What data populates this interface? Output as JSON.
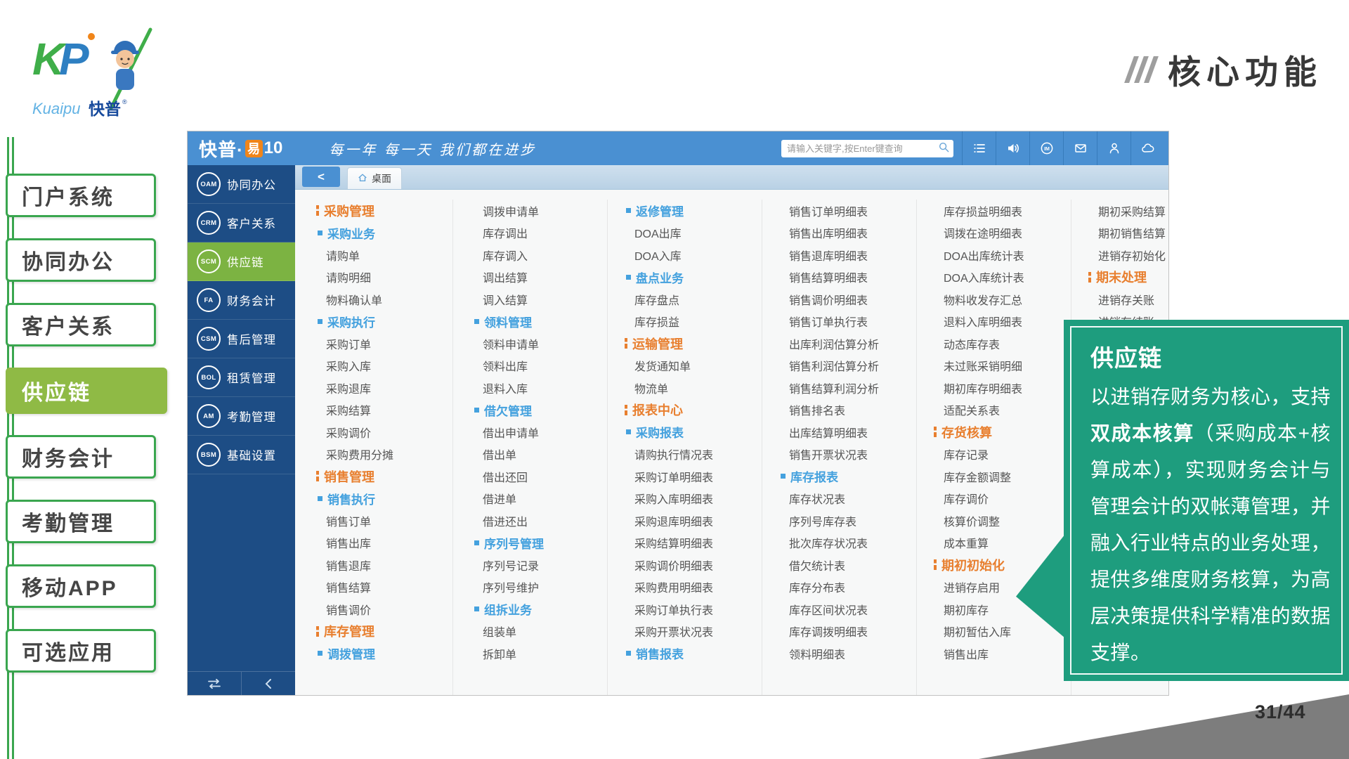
{
  "slide": {
    "title": "核心功能",
    "page_number": "31/44",
    "logo": {
      "mark": "KP",
      "latin": "Kuaipu",
      "cn": "快普"
    },
    "sidebar": {
      "items": [
        {
          "name": "portal-system",
          "label": "门户系统",
          "selected": false
        },
        {
          "name": "collaborative-office",
          "label": "协同办公",
          "selected": false
        },
        {
          "name": "customer-relations",
          "label": "客户关系",
          "selected": false
        },
        {
          "name": "supply-chain",
          "label": "供应链",
          "selected": true
        },
        {
          "name": "financial-accounting",
          "label": "财务会计",
          "selected": false
        },
        {
          "name": "attendance-management",
          "label": "考勤管理",
          "selected": false
        },
        {
          "name": "mobile-app",
          "label": "移动APP",
          "selected": false
        },
        {
          "name": "optional-apps",
          "label": "可选应用",
          "selected": false
        }
      ]
    },
    "callout": {
      "title": "供应链",
      "body_segments": [
        {
          "text": "以进销存财务为核心，支持",
          "bold": false
        },
        {
          "text": "双成本核算",
          "bold": true
        },
        {
          "text": "（采购成本+核算成本），实现财务会计与管理会计的双帐薄管理，并融入行业特点的业务处理，提供多维度财务核算，为高层决策提供科学精准的数据支撑。",
          "bold": false
        }
      ]
    }
  },
  "app": {
    "header": {
      "brand_cn": "快普·",
      "brand_yi": "易",
      "brand_version": "10",
      "tagline": "每一年 每一天 我们都在进步",
      "search_placeholder": "请输入关键字,按Enter键查询",
      "search_icon": "magnifier-icon",
      "icons": [
        "list-icon",
        "sound-icon",
        "im-icon",
        "mail-icon",
        "user-icon",
        "cloud-icon"
      ]
    },
    "nav": {
      "items": [
        {
          "code": "OAM",
          "label": "协同办公",
          "selected": false
        },
        {
          "code": "CRM",
          "label": "客户关系",
          "selected": false
        },
        {
          "code": "SCM",
          "label": "供应链",
          "selected": true
        },
        {
          "code": "FA",
          "label": "财务会计",
          "selected": false
        },
        {
          "code": "CSM",
          "label": "售后管理",
          "selected": false
        },
        {
          "code": "BOL",
          "label": "租赁管理",
          "selected": false
        },
        {
          "code": "AM",
          "label": "考勤管理",
          "selected": false
        },
        {
          "code": "BSM",
          "label": "基础设置",
          "selected": false
        }
      ],
      "footer_icons": [
        "swap-icon",
        "collapse-icon"
      ]
    },
    "tabbar": {
      "back_label": "<",
      "tab_label": "桌面",
      "tab_icon": "home-icon"
    },
    "menu": {
      "columns": [
        [
          {
            "t": "h",
            "l": "采购管理"
          },
          {
            "t": "s",
            "l": "采购业务"
          },
          {
            "t": "i",
            "l": "请购单"
          },
          {
            "t": "i",
            "l": "请购明细"
          },
          {
            "t": "i",
            "l": "物料确认单"
          },
          {
            "t": "s",
            "l": "采购执行"
          },
          {
            "t": "i",
            "l": "采购订单"
          },
          {
            "t": "i",
            "l": "采购入库"
          },
          {
            "t": "i",
            "l": "采购退库"
          },
          {
            "t": "i",
            "l": "采购结算"
          },
          {
            "t": "i",
            "l": "采购调价"
          },
          {
            "t": "i",
            "l": "采购费用分摊"
          },
          {
            "t": "h",
            "l": "销售管理"
          },
          {
            "t": "s",
            "l": "销售执行"
          },
          {
            "t": "i",
            "l": "销售订单"
          },
          {
            "t": "i",
            "l": "销售出库"
          },
          {
            "t": "i",
            "l": "销售退库"
          },
          {
            "t": "i",
            "l": "销售结算"
          },
          {
            "t": "i",
            "l": "销售调价"
          },
          {
            "t": "h",
            "l": "库存管理"
          },
          {
            "t": "s",
            "l": "调拨管理"
          }
        ],
        [
          {
            "t": "i",
            "l": "调拨申请单"
          },
          {
            "t": "i",
            "l": "库存调出"
          },
          {
            "t": "i",
            "l": "库存调入"
          },
          {
            "t": "i",
            "l": "调出结算"
          },
          {
            "t": "i",
            "l": "调入结算"
          },
          {
            "t": "s",
            "l": "领料管理"
          },
          {
            "t": "i",
            "l": "领料申请单"
          },
          {
            "t": "i",
            "l": "领料出库"
          },
          {
            "t": "i",
            "l": "退料入库"
          },
          {
            "t": "s",
            "l": "借欠管理"
          },
          {
            "t": "i",
            "l": "借出申请单"
          },
          {
            "t": "i",
            "l": "借出单"
          },
          {
            "t": "i",
            "l": "借出还回"
          },
          {
            "t": "i",
            "l": "借进单"
          },
          {
            "t": "i",
            "l": "借进还出"
          },
          {
            "t": "s",
            "l": "序列号管理"
          },
          {
            "t": "i",
            "l": "序列号记录"
          },
          {
            "t": "i",
            "l": "序列号维护"
          },
          {
            "t": "s",
            "l": "组拆业务"
          },
          {
            "t": "i",
            "l": "组装单"
          },
          {
            "t": "i",
            "l": "拆卸单"
          }
        ],
        [
          {
            "t": "s",
            "l": "返修管理"
          },
          {
            "t": "i",
            "l": "DOA出库"
          },
          {
            "t": "i",
            "l": "DOA入库"
          },
          {
            "t": "s",
            "l": "盘点业务"
          },
          {
            "t": "i",
            "l": "库存盘点"
          },
          {
            "t": "i",
            "l": "库存损益"
          },
          {
            "t": "h",
            "l": "运输管理"
          },
          {
            "t": "i",
            "l": "发货通知单"
          },
          {
            "t": "i",
            "l": "物流单"
          },
          {
            "t": "h",
            "l": "报表中心"
          },
          {
            "t": "s",
            "l": "采购报表"
          },
          {
            "t": "i",
            "l": "请购执行情况表"
          },
          {
            "t": "i",
            "l": "采购订单明细表"
          },
          {
            "t": "i",
            "l": "采购入库明细表"
          },
          {
            "t": "i",
            "l": "采购退库明细表"
          },
          {
            "t": "i",
            "l": "采购结算明细表"
          },
          {
            "t": "i",
            "l": "采购调价明细表"
          },
          {
            "t": "i",
            "l": "采购费用明细表"
          },
          {
            "t": "i",
            "l": "采购订单执行表"
          },
          {
            "t": "i",
            "l": "采购开票状况表"
          },
          {
            "t": "s",
            "l": "销售报表"
          }
        ],
        [
          {
            "t": "i",
            "l": "销售订单明细表"
          },
          {
            "t": "i",
            "l": "销售出库明细表"
          },
          {
            "t": "i",
            "l": "销售退库明细表"
          },
          {
            "t": "i",
            "l": "销售结算明细表"
          },
          {
            "t": "i",
            "l": "销售调价明细表"
          },
          {
            "t": "i",
            "l": "销售订单执行表"
          },
          {
            "t": "i",
            "l": "出库利润估算分析"
          },
          {
            "t": "i",
            "l": "销售利润估算分析"
          },
          {
            "t": "i",
            "l": "销售结算利润分析"
          },
          {
            "t": "i",
            "l": "销售排名表"
          },
          {
            "t": "i",
            "l": "出库结算明细表"
          },
          {
            "t": "i",
            "l": "销售开票状况表"
          },
          {
            "t": "s",
            "l": "库存报表"
          },
          {
            "t": "i",
            "l": "库存状况表"
          },
          {
            "t": "i",
            "l": "序列号库存表"
          },
          {
            "t": "i",
            "l": "批次库存状况表"
          },
          {
            "t": "i",
            "l": "借欠统计表"
          },
          {
            "t": "i",
            "l": "库存分布表"
          },
          {
            "t": "i",
            "l": "库存区间状况表"
          },
          {
            "t": "i",
            "l": "库存调拨明细表"
          },
          {
            "t": "i",
            "l": "领料明细表"
          }
        ],
        [
          {
            "t": "i",
            "l": "库存损益明细表"
          },
          {
            "t": "i",
            "l": "调拨在途明细表"
          },
          {
            "t": "i",
            "l": "DOA出库统计表"
          },
          {
            "t": "i",
            "l": "DOA入库统计表"
          },
          {
            "t": "i",
            "l": "物料收发存汇总"
          },
          {
            "t": "i",
            "l": "退料入库明细表"
          },
          {
            "t": "i",
            "l": "动态库存表"
          },
          {
            "t": "i",
            "l": "未过账采销明细"
          },
          {
            "t": "i",
            "l": "期初库存明细表"
          },
          {
            "t": "i",
            "l": "适配关系表"
          },
          {
            "t": "h",
            "l": "存货核算"
          },
          {
            "t": "i",
            "l": "库存记录"
          },
          {
            "t": "i",
            "l": "库存金额调整"
          },
          {
            "t": "i",
            "l": "库存调价"
          },
          {
            "t": "i",
            "l": "核算价调整"
          },
          {
            "t": "i",
            "l": "成本重算"
          },
          {
            "t": "h",
            "l": "期初初始化"
          },
          {
            "t": "i",
            "l": "进销存启用"
          },
          {
            "t": "i",
            "l": "期初库存"
          },
          {
            "t": "i",
            "l": "期初暂估入库"
          },
          {
            "t": "i",
            "l": "销售出库"
          }
        ],
        [
          {
            "t": "i",
            "l": "期初采购结算"
          },
          {
            "t": "i",
            "l": "期初销售结算"
          },
          {
            "t": "i",
            "l": "进销存初始化"
          },
          {
            "t": "h",
            "l": "期末处理"
          },
          {
            "t": "i",
            "l": "进销存关账"
          },
          {
            "t": "i",
            "l": "进销存结账"
          }
        ]
      ]
    }
  },
  "colors": {
    "header_blue": "#4a90d2",
    "nav_dark_blue": "#1d4d85",
    "selected_green": "#7cb342",
    "sidebar_green": "#3aa64f",
    "sidebar_selected_green": "#8fba45",
    "brand_orange": "#f08519",
    "accent_orange": "#e87f2f",
    "accent_blue": "#44a1de",
    "item_text": "#555555",
    "callout_teal": "#1e9d7e",
    "triangle_gray": "#7d7d7d"
  }
}
